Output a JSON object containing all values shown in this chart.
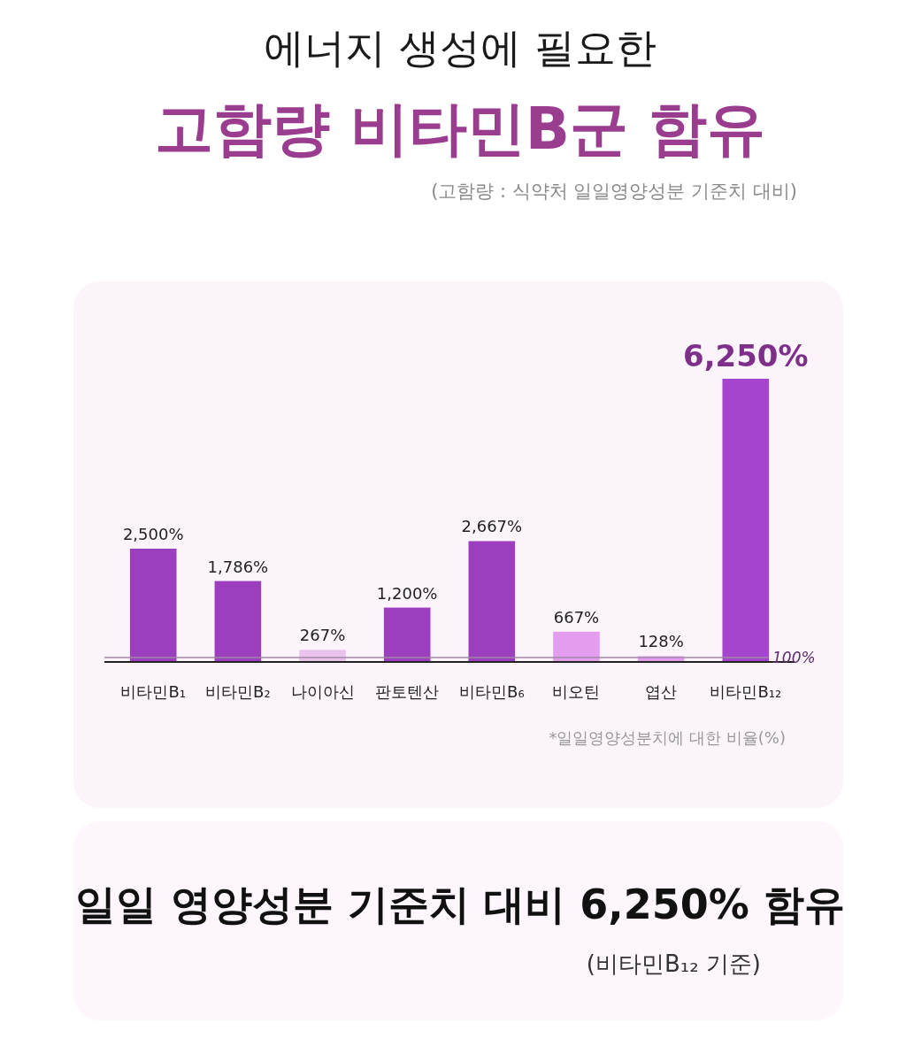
{
  "chart_data": {
    "type": "bar",
    "title": "에너지 생성에 필요한",
    "subtitle": "고함량 비타민B군 함유",
    "categories": [
      "비타민B₁",
      "비타민B₂",
      "나이아신",
      "판토텐산",
      "비타민B₆",
      "비오틴",
      "엽산",
      "비타민B₁₂"
    ],
    "values": [
      2500,
      1786,
      267,
      1200,
      2667,
      667,
      128,
      6250
    ],
    "colors": [
      "#9c3fbf",
      "#9c3fbf",
      "#e9c3ec",
      "#9c3fbf",
      "#9c3fbf",
      "#e49cee",
      "#e49cee",
      "#a544cc"
    ],
    "value_labels": [
      "2,500%",
      "1,786%",
      "267%",
      "1,200%",
      "2,667%",
      "667%",
      "128%",
      "6,250%"
    ],
    "ref_lines": [
      {
        "axis": "y",
        "value": 100,
        "label": "100%",
        "color": "#a08aa6"
      }
    ],
    "annotations": [
      "(고함량 : 식약처 일일영양성분 기준치 대비)",
      "*일일영양성분치에 대한 비율(%)",
      "일일 영양성분 기준치 대비 6,250% 함유",
      "(비타민B₁₂ 기준)"
    ]
  }
}
